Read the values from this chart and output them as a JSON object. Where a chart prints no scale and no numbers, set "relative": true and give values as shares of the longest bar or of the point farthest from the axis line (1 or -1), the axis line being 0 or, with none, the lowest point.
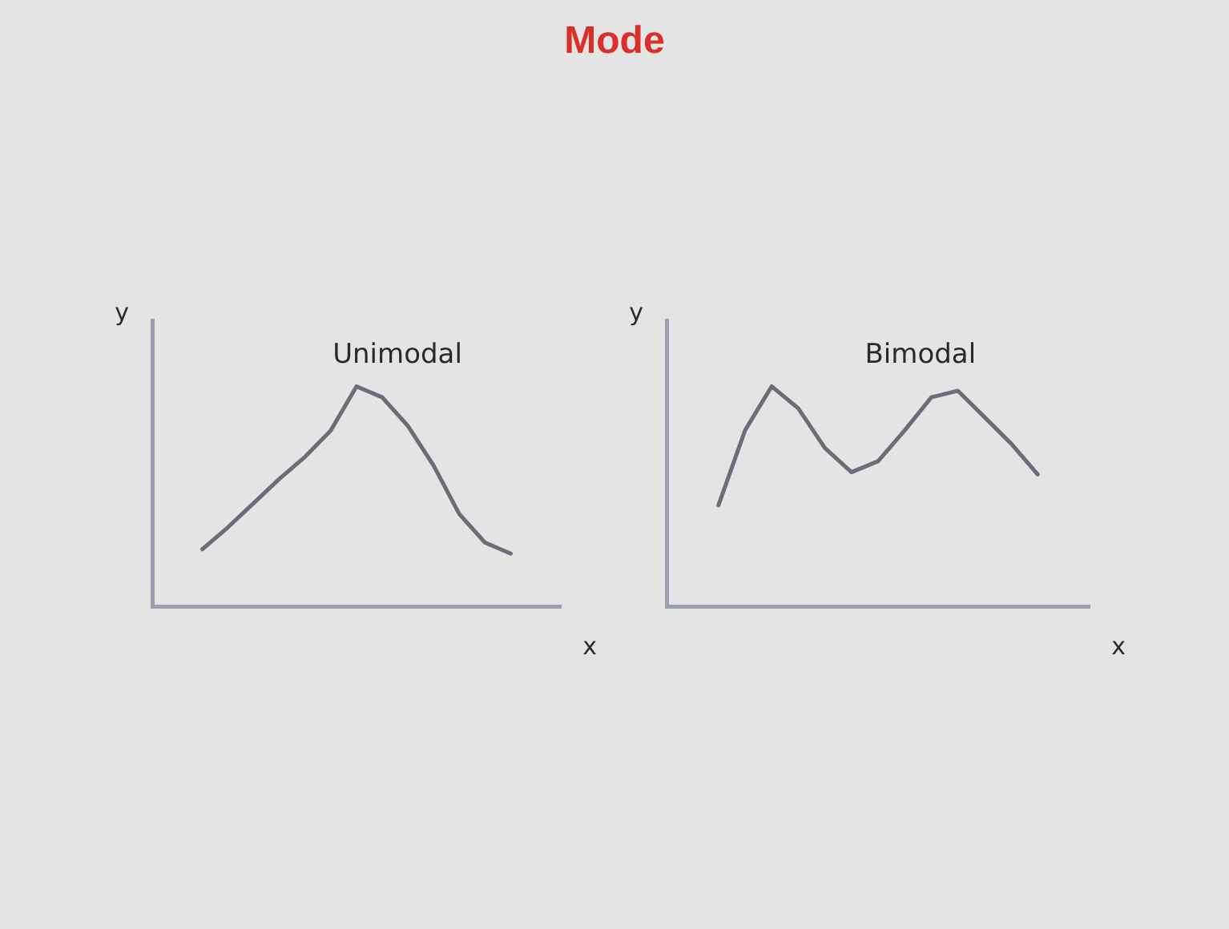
{
  "chart_data": [
    {
      "type": "other",
      "title": "Mode"
    },
    {
      "type": "line",
      "title": "Unimodal",
      "xlabel": "x",
      "ylabel": "y",
      "relative": true,
      "grid": false,
      "legend": false,
      "marker": "none",
      "categories": [
        null,
        null,
        null,
        null,
        null,
        null,
        null,
        null,
        null,
        null,
        null,
        null,
        null
      ],
      "series": [
        {
          "color": "#6a6e78",
          "values": [
            0.26,
            0.36,
            0.47,
            0.58,
            0.68,
            0.8,
            1,
            0.95,
            0.82,
            0.64,
            0.42,
            0.29,
            0.24
          ]
        }
      ]
    },
    {
      "type": "line",
      "title": "Bimodal",
      "xlabel": "x",
      "ylabel": "y",
      "relative": true,
      "grid": false,
      "legend": false,
      "marker": "none",
      "categories": [
        null,
        null,
        null,
        null,
        null,
        null,
        null,
        null,
        null,
        null,
        null,
        null,
        null
      ],
      "series": [
        {
          "color": "#6a6e78",
          "values": [
            0.46,
            0.8,
            1,
            0.9,
            0.72,
            0.61,
            0.66,
            0.8,
            0.95,
            0.98,
            0.86,
            0.74,
            0.6
          ]
        }
      ]
    }
  ]
}
